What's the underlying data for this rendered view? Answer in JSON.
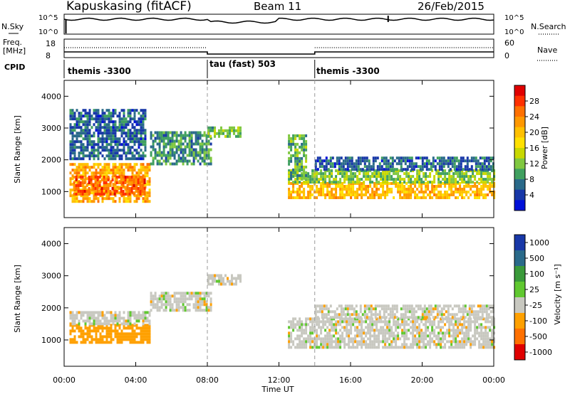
{
  "header": {
    "title": "Kapuskasing (fitACF)",
    "beam": "Beam 11",
    "date": "26/Feb/2015"
  },
  "top_panels": {
    "nsky_label": "N.Sky",
    "nsky_ticks": [
      "10^5",
      "10^0"
    ],
    "nsearch_label": "N.Search",
    "nsearch_ticks": [
      "10^5",
      "10^0"
    ],
    "freq_label": "Freq.",
    "freq_unit": "[MHz]",
    "freq_ticks": [
      "18",
      "8"
    ],
    "nave_label": "Nave",
    "nave_ticks": [
      "60",
      "0"
    ],
    "cpid_label": "CPID",
    "cpid_segments": [
      {
        "name": "themis -3300",
        "start_hour": 0,
        "end_hour": 8
      },
      {
        "name": "tau (fast) 503",
        "start_hour": 8,
        "end_hour": 14
      },
      {
        "name": "themis -3300",
        "start_hour": 14,
        "end_hour": 24
      }
    ]
  },
  "colorbars": {
    "power": {
      "label": "Power [dB]",
      "ticks": [
        "28",
        "24",
        "20",
        "16",
        "12",
        "8",
        "4"
      ],
      "colors": [
        "#e00000",
        "#ff3000",
        "#ff7000",
        "#ff9800",
        "#ffc000",
        "#ffe000",
        "#c8d800",
        "#80c840",
        "#40a060",
        "#2a6a8a",
        "#1838a8",
        "#0010d8"
      ]
    },
    "velocity": {
      "label": "Velocity [m s⁻¹]",
      "ticks": [
        "1000",
        "500",
        "100",
        "25",
        "-25",
        "-100",
        "-500",
        "-1000"
      ],
      "colors": [
        "#1838a8",
        "#2a6a8a",
        "#3a9a3a",
        "#60c830",
        "#c8c8c0",
        "#ffa000",
        "#ff7000",
        "#e00000"
      ]
    }
  },
  "chart_data": [
    {
      "type": "heatmap",
      "title": "Power",
      "xlabel": "Time UT",
      "ylabel": "Slant Range [km]",
      "x_ticks": [
        "00:00",
        "04:00",
        "08:00",
        "12:00",
        "16:00",
        "20:00",
        "00:00"
      ],
      "y_ticks": [
        "1000",
        "2000",
        "3000",
        "4000"
      ],
      "xlim_hours": [
        0,
        24
      ],
      "ylim_km": [
        180,
        4500
      ],
      "regions": [
        {
          "t0": 0.3,
          "t1": 4.8,
          "r0": 700,
          "r1": 1900,
          "power_db": 22
        },
        {
          "t0": 0.5,
          "t1": 4.5,
          "r0": 900,
          "r1": 1500,
          "power_db": 27
        },
        {
          "t0": 4.8,
          "t1": 8.2,
          "r0": 1900,
          "r1": 2900,
          "power_db": 8
        },
        {
          "t0": 8.0,
          "t1": 9.8,
          "r0": 2750,
          "r1": 3050,
          "power_db": 11
        },
        {
          "t0": 0.3,
          "t1": 4.5,
          "r0": 2000,
          "r1": 3600,
          "power_db": 5
        },
        {
          "t0": 12.5,
          "t1": 24,
          "r0": 800,
          "r1": 1300,
          "power_db": 21
        },
        {
          "t0": 12.5,
          "t1": 24,
          "r0": 1300,
          "r1": 1700,
          "power_db": 12
        },
        {
          "t0": 14,
          "t1": 24,
          "r0": 1700,
          "r1": 2100,
          "power_db": 5
        },
        {
          "t0": 12.5,
          "t1": 13.5,
          "r0": 1400,
          "r1": 2800,
          "power_db": 10
        }
      ]
    },
    {
      "type": "heatmap",
      "title": "Velocity",
      "xlabel": "Time UT",
      "ylabel": "Slant Range [km]",
      "x_ticks": [
        "00:00",
        "04:00",
        "08:00",
        "12:00",
        "16:00",
        "20:00",
        "00:00"
      ],
      "y_ticks": [
        "1000",
        "2000",
        "3000",
        "4000"
      ],
      "xlim_hours": [
        0,
        24
      ],
      "ylim_km": [
        180,
        4500
      ],
      "regions": [
        {
          "t0": 0.3,
          "t1": 4.8,
          "r0": 900,
          "r1": 1500,
          "velocity": -150
        },
        {
          "t0": 0.3,
          "t1": 4.8,
          "r0": 1500,
          "r1": 1900,
          "velocity": 0
        },
        {
          "t0": 4.8,
          "t1": 8.2,
          "r0": 1900,
          "r1": 2500,
          "velocity": 0
        },
        {
          "t0": 8.0,
          "t1": 9.8,
          "r0": 2750,
          "r1": 3050,
          "velocity": 0
        },
        {
          "t0": 12.5,
          "t1": 24,
          "r0": 800,
          "r1": 1700,
          "velocity": 0
        },
        {
          "t0": 14,
          "t1": 24,
          "r0": 1700,
          "r1": 2100,
          "velocity": 0
        }
      ]
    }
  ]
}
